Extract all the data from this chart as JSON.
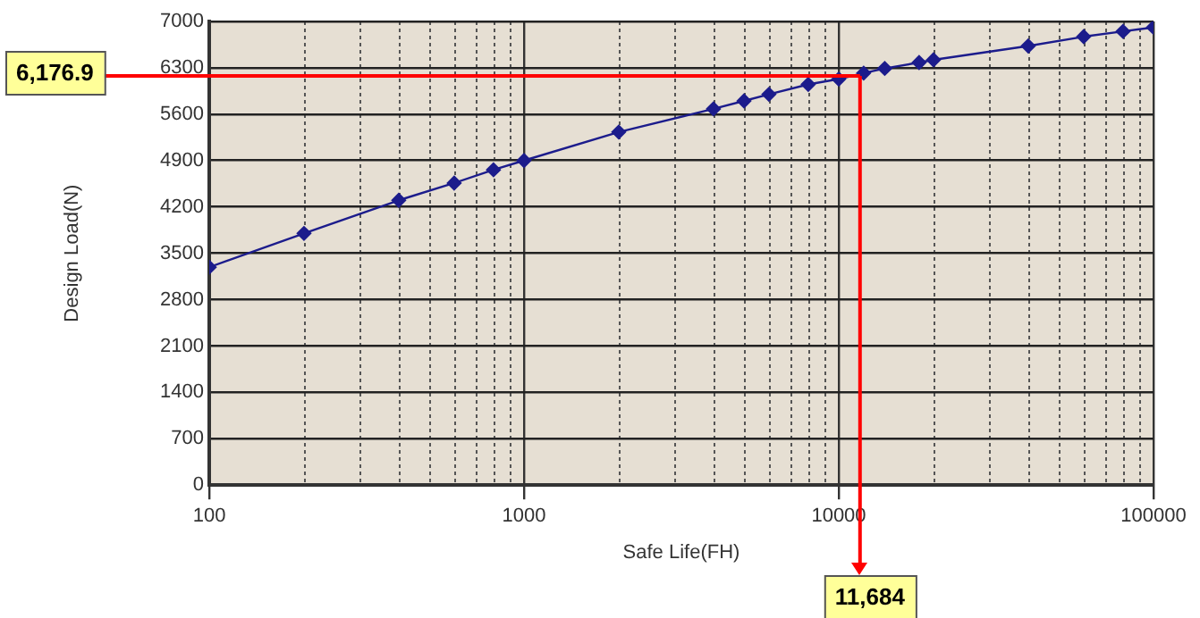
{
  "chart_data": {
    "type": "line",
    "xlabel": "Safe Life(FH)",
    "ylabel": "Design Load(N)",
    "x": [
      100,
      200,
      400,
      600,
      800,
      1000,
      2000,
      4000,
      5000,
      6000,
      8000,
      10000,
      12000,
      14000,
      18000,
      20000,
      40000,
      60000,
      80000,
      100000
    ],
    "series": [
      {
        "color": "#1c1c8c",
        "values": [
          3290,
          3800,
          4300,
          4560,
          4760,
          4900,
          5330,
          5680,
          5800,
          5900,
          6050,
          6130,
          6220,
          6290,
          6380,
          6420,
          6630,
          6770,
          6850,
          6910
        ]
      }
    ],
    "log": "x",
    "xlim": [
      100,
      100000
    ],
    "xticks": [
      100,
      1000,
      10000,
      100000
    ],
    "ylim": [
      0,
      7000
    ],
    "yticks": [
      0,
      700,
      1400,
      2100,
      2800,
      3500,
      4200,
      4900,
      5600,
      6300,
      7000
    ],
    "grid": true,
    "legend": false,
    "marker": "diamond",
    "line_style": "solid",
    "ref_lines": [
      {
        "axis": "y",
        "value": 6176.9,
        "label": "6,176.9",
        "color": "#ff0000"
      },
      {
        "axis": "x",
        "value": 11684,
        "label": "11,684",
        "color": "#ff0000"
      }
    ]
  }
}
